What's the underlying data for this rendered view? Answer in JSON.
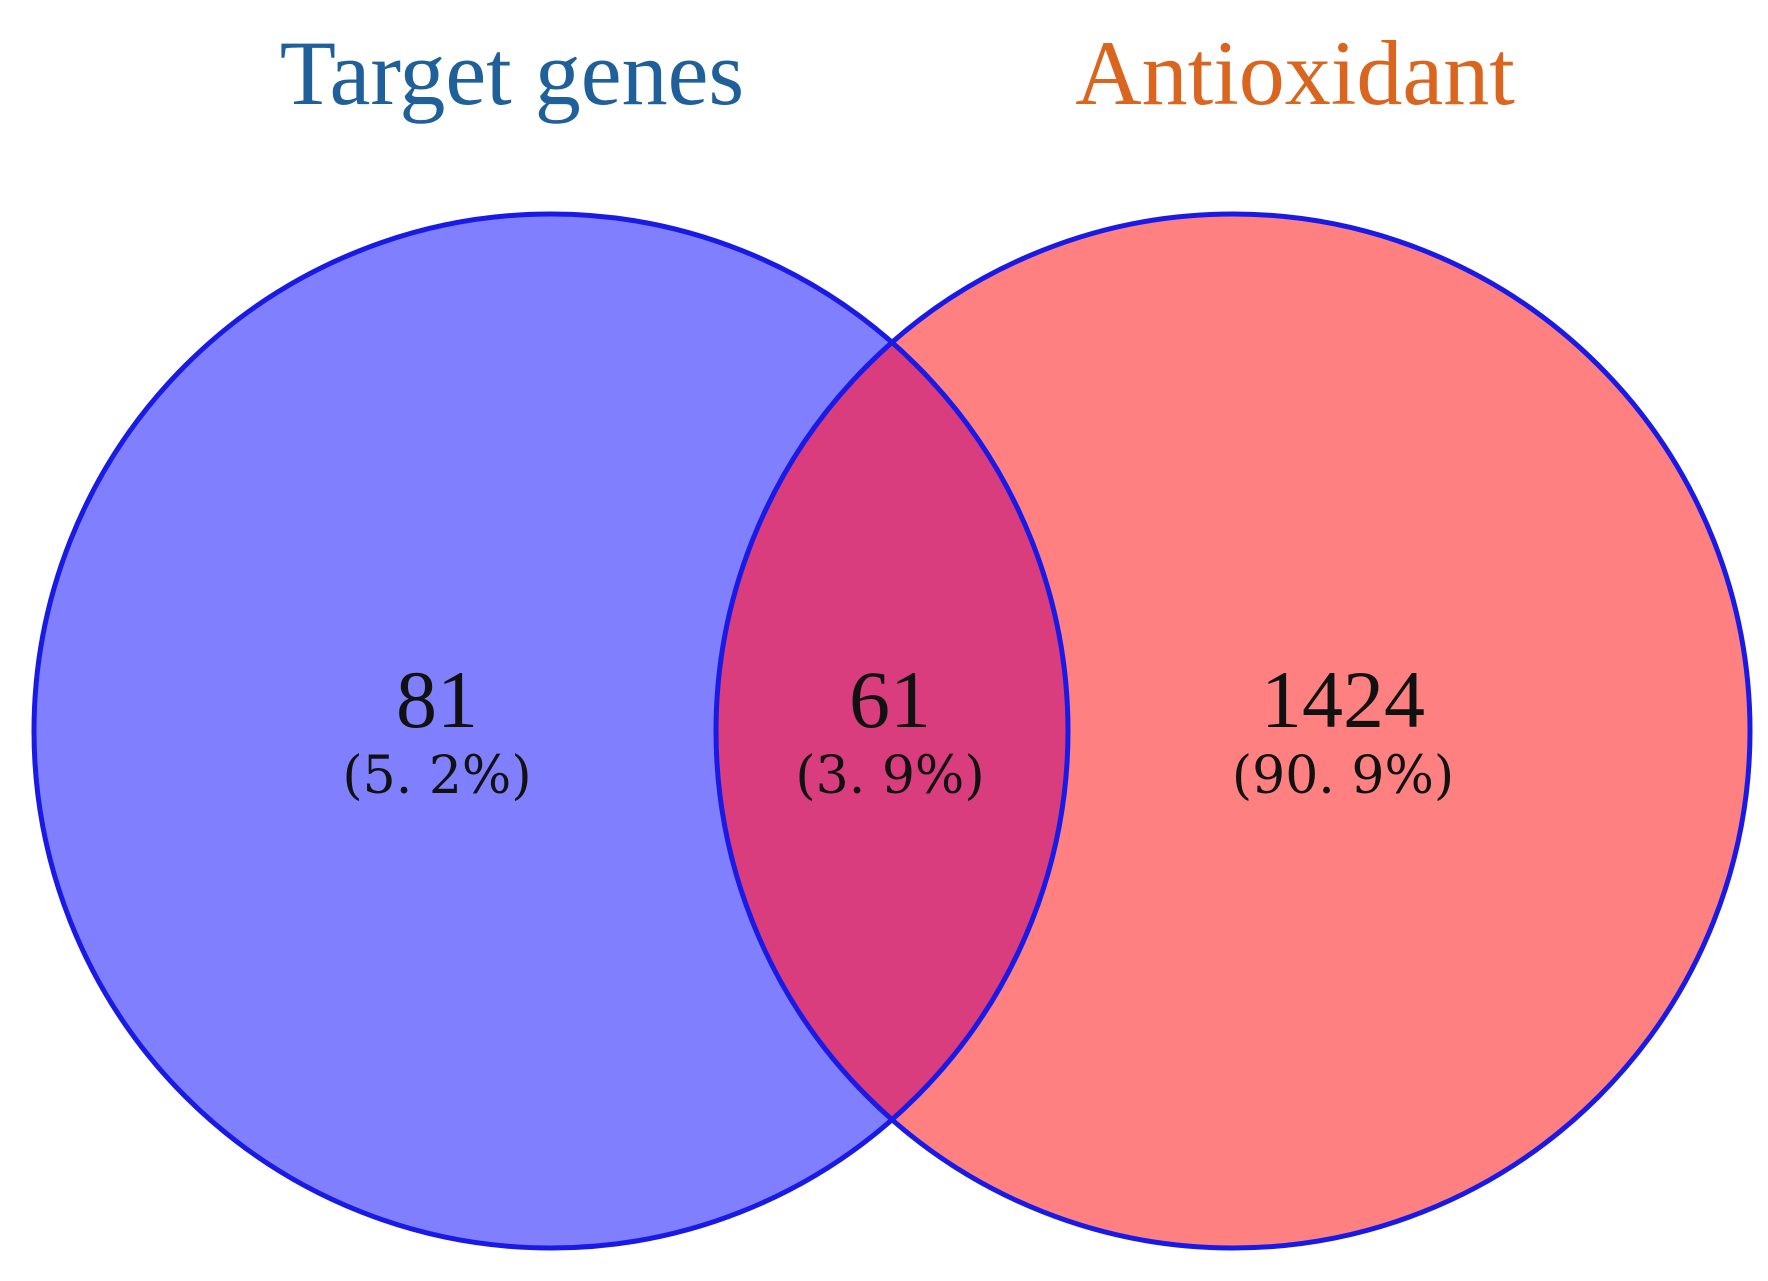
{
  "sets": [
    {
      "id": "left",
      "title": "Target genes",
      "title_color": "#1f5f9a",
      "fill": "#8080ff"
    },
    {
      "id": "right",
      "title": "Antioxidant",
      "title_color": "#d9651f",
      "fill": "#ff8080"
    }
  ],
  "outline_color": "#1a1ae6",
  "intersection_fill": "#d93d7e",
  "regions": {
    "left_only": {
      "count": "81",
      "percent": "(5. 2%)"
    },
    "overlap": {
      "count": "61",
      "percent": "(3. 9%)"
    },
    "right_only": {
      "count": "1424",
      "percent": "(90. 9%)"
    }
  }
}
